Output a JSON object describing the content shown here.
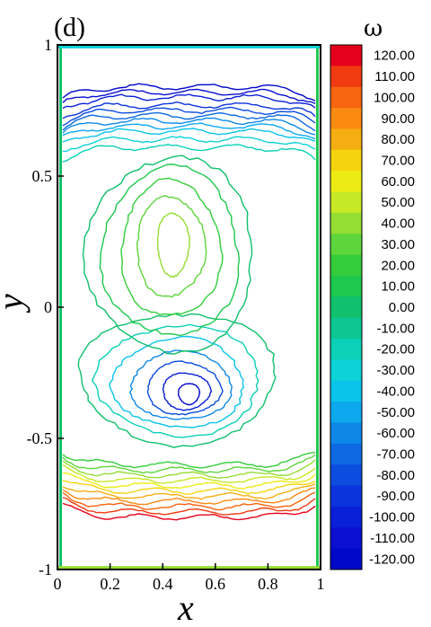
{
  "chart_data": {
    "type": "contour",
    "panel_label": "(d)",
    "xlabel": "x",
    "ylabel": "y",
    "xlim": [
      0,
      1
    ],
    "ylim": [
      -1,
      1
    ],
    "x_ticks": [
      "0",
      "0.2",
      "0.4",
      "0.6",
      "0.8",
      "1"
    ],
    "y_ticks": [
      "1",
      "0.5",
      "0",
      "-0.5",
      "-1"
    ],
    "legend": {
      "title": "ω",
      "levels": [
        "120.00",
        "110.00",
        "100.00",
        "90.00",
        "80.00",
        "70.00",
        "60.00",
        "50.00",
        "40.00",
        "30.00",
        "20.00",
        "10.00",
        "0.00",
        "-10.00",
        "-20.00",
        "-30.00",
        "-40.00",
        "-50.00",
        "-60.00",
        "-70.00",
        "-80.00",
        "-90.00",
        "-100.00",
        "-110.00",
        "-120.00"
      ],
      "colors": [
        "#e5001b",
        "#f03a10",
        "#f6650f",
        "#fa8a12",
        "#f5ae12",
        "#f5d40f",
        "#ecec14",
        "#c6e826",
        "#95dd33",
        "#5ed63b",
        "#34cd3c",
        "#1ec84d",
        "#10c06c",
        "#0ec692",
        "#0cd0b7",
        "#0dd2d6",
        "#0bc4ec",
        "#0ea8ef",
        "#0e88e8",
        "#0e69e2",
        "#0c4de0",
        "#0b34dc",
        "#0a1fd8",
        "#0a0fd0",
        "#0008c8"
      ]
    },
    "contours": [
      {
        "value": -120,
        "cx": 0.5,
        "cy": -0.33,
        "rx": 0.04,
        "ry": 0.04
      },
      {
        "value": -100,
        "cx": 0.49,
        "cy": -0.32,
        "rx": 0.09,
        "ry": 0.07
      },
      {
        "value": -80,
        "cx": 0.48,
        "cy": -0.31,
        "rx": 0.14,
        "ry": 0.1
      },
      {
        "value": -60,
        "cx": 0.47,
        "cy": -0.3,
        "rx": 0.19,
        "ry": 0.13
      },
      {
        "value": -40,
        "cx": 0.46,
        "cy": -0.29,
        "rx": 0.25,
        "ry": 0.17
      },
      {
        "value": -20,
        "cx": 0.46,
        "cy": -0.28,
        "rx": 0.31,
        "ry": 0.21
      },
      {
        "value": 0,
        "cx": 0.46,
        "cy": -0.27,
        "rx": 0.37,
        "ry": 0.25
      },
      {
        "value": 40,
        "cx": 0.44,
        "cy": 0.24,
        "rx": 0.06,
        "ry": 0.12
      },
      {
        "value": 30,
        "cx": 0.43,
        "cy": 0.23,
        "rx": 0.13,
        "ry": 0.19
      },
      {
        "value": 20,
        "cx": 0.43,
        "cy": 0.22,
        "rx": 0.19,
        "ry": 0.26
      },
      {
        "value": 10,
        "cx": 0.43,
        "cy": 0.21,
        "rx": 0.26,
        "ry": 0.32
      },
      {
        "value": 0,
        "cx": 0.43,
        "cy": 0.2,
        "rx": 0.32,
        "ry": 0.37
      }
    ],
    "bands": {
      "top": [
        {
          "value": -120,
          "y": 0.84
        },
        {
          "value": -110,
          "y": 0.82
        },
        {
          "value": -100,
          "y": 0.8
        },
        {
          "value": -90,
          "y": 0.77
        },
        {
          "value": -80,
          "y": 0.75
        },
        {
          "value": -70,
          "y": 0.73
        },
        {
          "value": -60,
          "y": 0.71
        },
        {
          "value": -50,
          "y": 0.69
        },
        {
          "value": -40,
          "y": 0.67
        },
        {
          "value": -30,
          "y": 0.64
        },
        {
          "value": -20,
          "y": 0.61
        }
      ],
      "bottom": [
        {
          "value": 120,
          "y": -0.8
        },
        {
          "value": 110,
          "y": -0.78
        },
        {
          "value": 100,
          "y": -0.76
        },
        {
          "value": 90,
          "y": -0.74
        },
        {
          "value": 80,
          "y": -0.72
        },
        {
          "value": 70,
          "y": -0.7
        },
        {
          "value": 60,
          "y": -0.68
        },
        {
          "value": 50,
          "y": -0.66
        },
        {
          "value": 40,
          "y": -0.64
        },
        {
          "value": 30,
          "y": -0.62
        },
        {
          "value": 20,
          "y": -0.6
        }
      ]
    }
  }
}
